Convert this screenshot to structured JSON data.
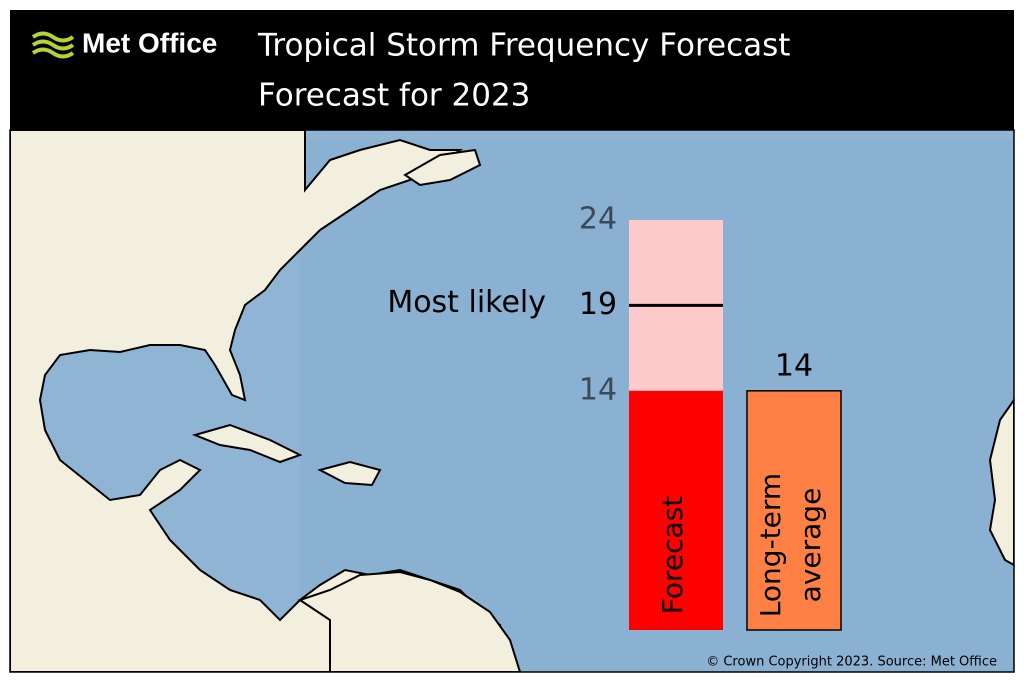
{
  "brand": "Met Office",
  "credit": "© Crown Copyright 2023. Source: Met Office",
  "chart_data": {
    "type": "forecast-range",
    "title": "Tropical Storm Frequency Forecast",
    "subtitle": "Forecast for 2023",
    "ylim": [
      0,
      24
    ],
    "forecast": {
      "name": "Forecast",
      "low": 14,
      "high": 24,
      "most_likely": 19,
      "most_likely_label": "Most likely",
      "color": "#ff0000",
      "range_color": "#fccaca"
    },
    "average": {
      "name": "Long-term average",
      "value": 14,
      "color": "#ff8045"
    }
  }
}
